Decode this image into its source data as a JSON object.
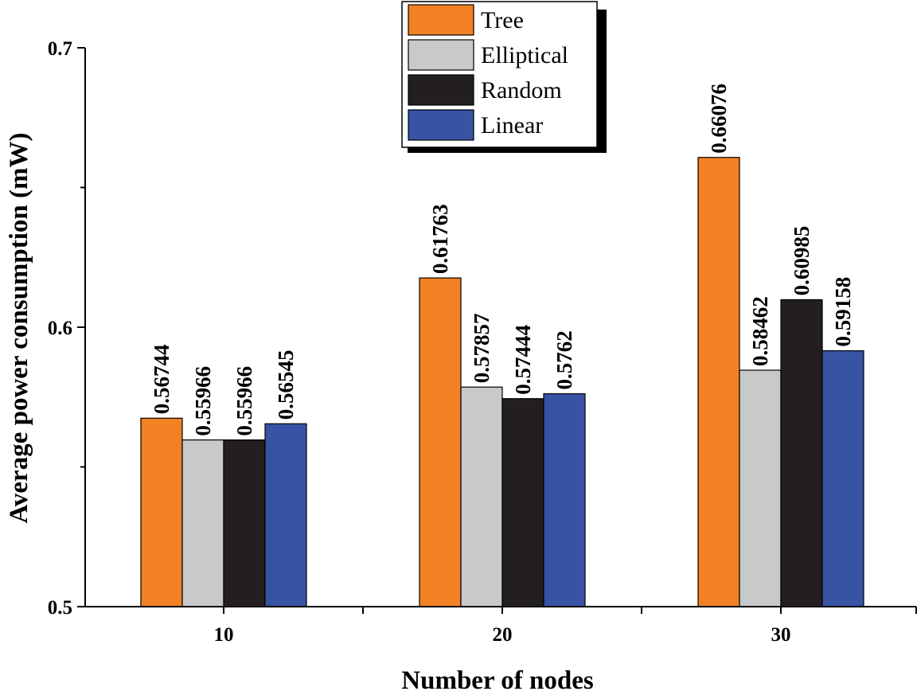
{
  "chart_data": {
    "type": "bar",
    "title": "",
    "xlabel": "Number of nodes",
    "ylabel": "Average power consumption (mW)",
    "categories": [
      "10",
      "20",
      "30"
    ],
    "ylim": [
      0.5,
      0.7
    ],
    "yticks": [
      0.5,
      0.6,
      0.7
    ],
    "ytick_labels": [
      "0.5",
      "0.6",
      "0.7"
    ],
    "legend_position": "top-center",
    "grid": false,
    "series": [
      {
        "name": "Tree",
        "color": "#F28123",
        "values": [
          0.56744,
          0.61763,
          0.66076
        ],
        "labels": [
          "0.56744",
          "0.61763",
          "0.66076"
        ]
      },
      {
        "name": "Elliptical",
        "color": "#C8C9CB",
        "values": [
          0.55966,
          0.57857,
          0.58462
        ],
        "labels": [
          "0.55966",
          "0.57857",
          "0.58462"
        ]
      },
      {
        "name": "Random",
        "color": "#231F20",
        "values": [
          0.55966,
          0.57444,
          0.60985
        ],
        "labels": [
          "0.55966",
          "0.57444",
          "0.60985"
        ]
      },
      {
        "name": "Linear",
        "color": "#3953A4",
        "values": [
          0.56545,
          0.5762,
          0.59158
        ],
        "labels": [
          "0.56545",
          "0.5762",
          "0.59158"
        ]
      }
    ]
  }
}
